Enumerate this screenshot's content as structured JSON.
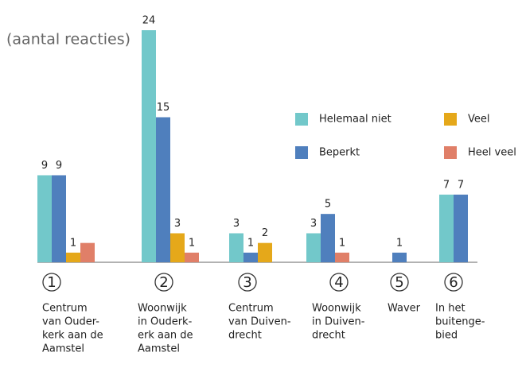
{
  "chart_data": {
    "type": "bar",
    "title": "(aantal reacties)",
    "categories": [
      [
        "Centrum",
        "van Ouder-",
        "kerk aan de",
        "Aamstel"
      ],
      [
        "Woonwijk",
        "in Ouderk-",
        "erk aan de",
        "Aamstel"
      ],
      [
        "Centrum",
        "van Duiven-",
        "drecht"
      ],
      [
        "Woonwijk",
        "in Duiven-",
        "drecht"
      ],
      [
        "Waver"
      ],
      [
        "In het",
        "buitenge-",
        "bied"
      ]
    ],
    "markers": [
      "1",
      "2",
      "3",
      "4",
      "5",
      "6"
    ],
    "series": [
      {
        "name": "Helemaal niet",
        "color": "#72c8ca",
        "values": [
          9,
          24,
          3,
          3,
          null,
          7
        ],
        "value_labels": [
          "9",
          "24",
          "3",
          "3",
          null,
          "7"
        ]
      },
      {
        "name": "Beperkt",
        "color": "#4f7fbd",
        "values": [
          9,
          15,
          1,
          5,
          1,
          7
        ],
        "value_labels": [
          "9",
          "15",
          "1",
          "5",
          "1",
          "7"
        ]
      },
      {
        "name": "Veel",
        "color": "#e5a81a",
        "values": [
          1,
          3,
          2,
          null,
          null,
          null
        ],
        "value_labels": [
          "1",
          "3",
          "2",
          null,
          null,
          null
        ]
      },
      {
        "name": "Heel veel",
        "color": "#e07f68",
        "values": [
          2,
          1,
          null,
          1,
          null,
          null
        ],
        "value_labels": [
          null,
          "1",
          null,
          "1",
          null,
          null
        ]
      }
    ],
    "ylim": [
      0,
      24
    ]
  }
}
